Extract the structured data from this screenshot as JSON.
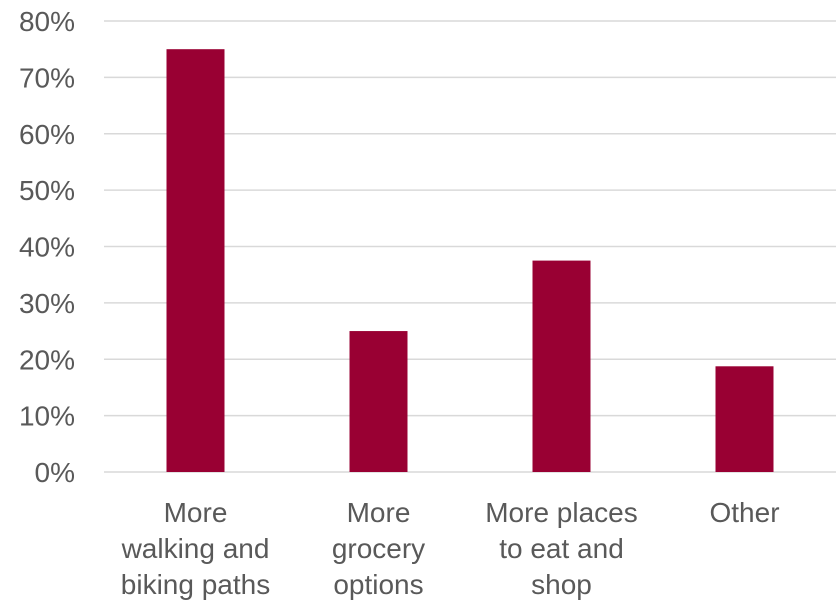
{
  "chart_data": {
    "type": "bar",
    "categories": [
      [
        "More",
        "walking and",
        "biking paths"
      ],
      [
        "More",
        "grocery",
        "options"
      ],
      [
        "More places",
        "to eat and",
        "shop"
      ],
      [
        "Other"
      ]
    ],
    "values": [
      75,
      25,
      37.5,
      18.75
    ],
    "y_ticks": [
      "0%",
      "10%",
      "20%",
      "30%",
      "40%",
      "50%",
      "60%",
      "70%",
      "80%"
    ],
    "ylim": [
      0,
      80
    ],
    "grid": true,
    "legend": "none",
    "bar_color": "#990033",
    "grid_color": "#d9d9d9",
    "text_color": "#595959"
  }
}
